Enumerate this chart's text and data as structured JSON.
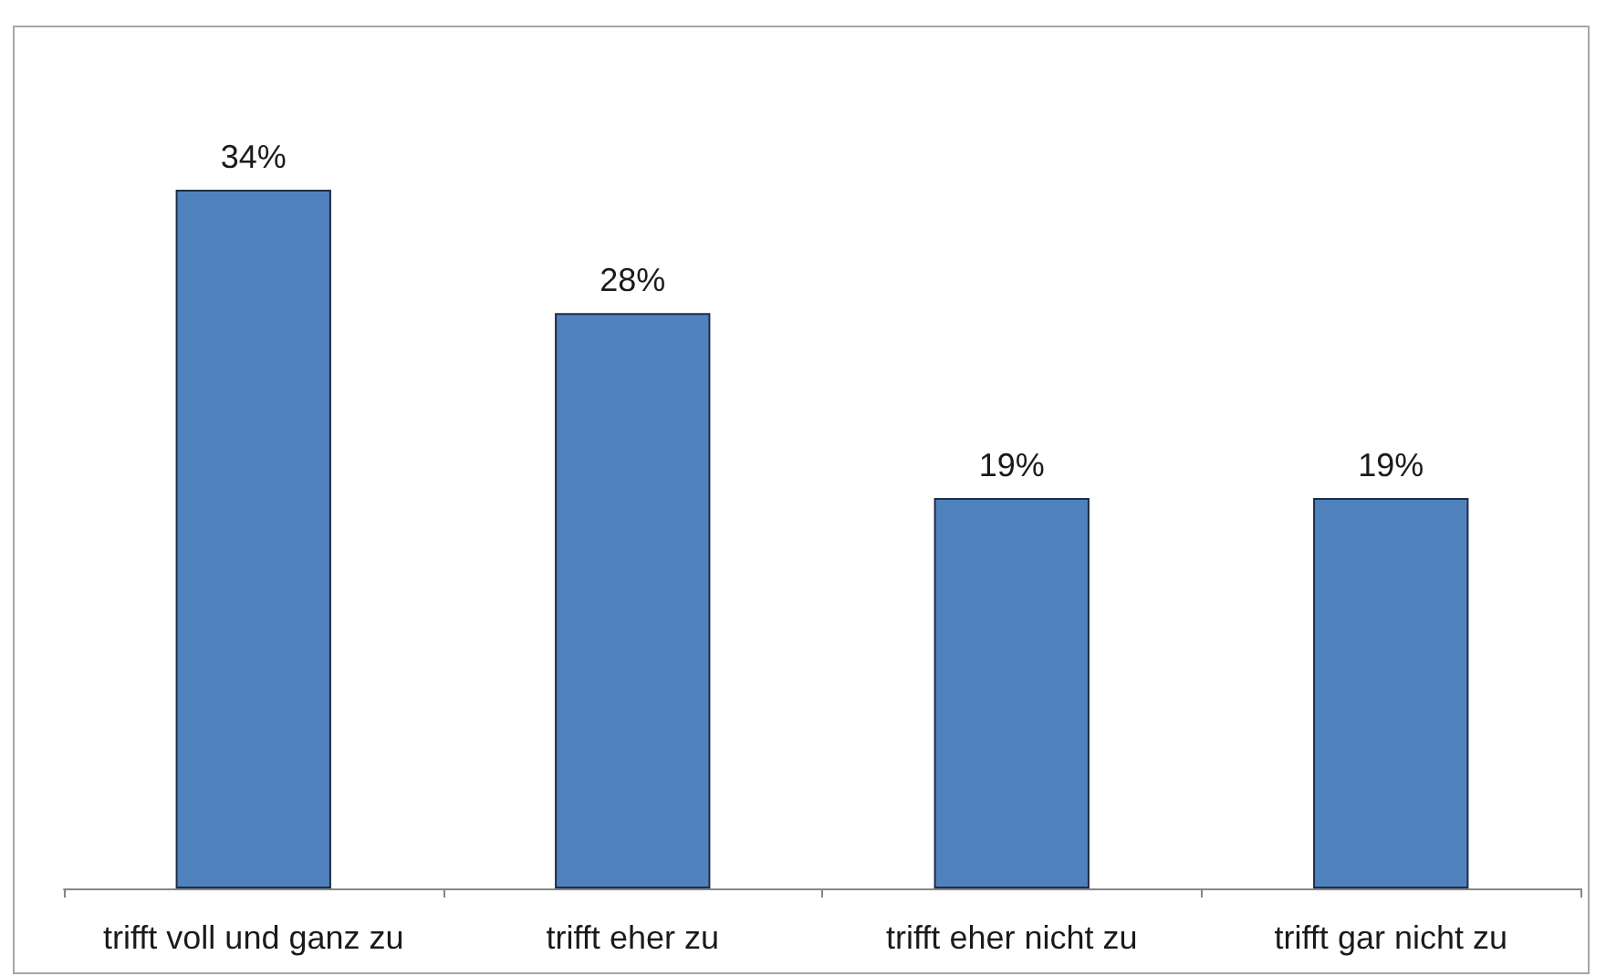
{
  "chart_data": {
    "type": "bar",
    "categories": [
      "trifft voll und ganz zu",
      "trifft eher zu",
      "trifft eher nicht zu",
      "trifft gar nicht zu"
    ],
    "values": [
      34,
      28,
      19,
      19
    ],
    "color": "#4f81bd",
    "value_labels": [
      "34%",
      "28%",
      "19%",
      "19%"
    ],
    "tick_labels": "x"
  }
}
